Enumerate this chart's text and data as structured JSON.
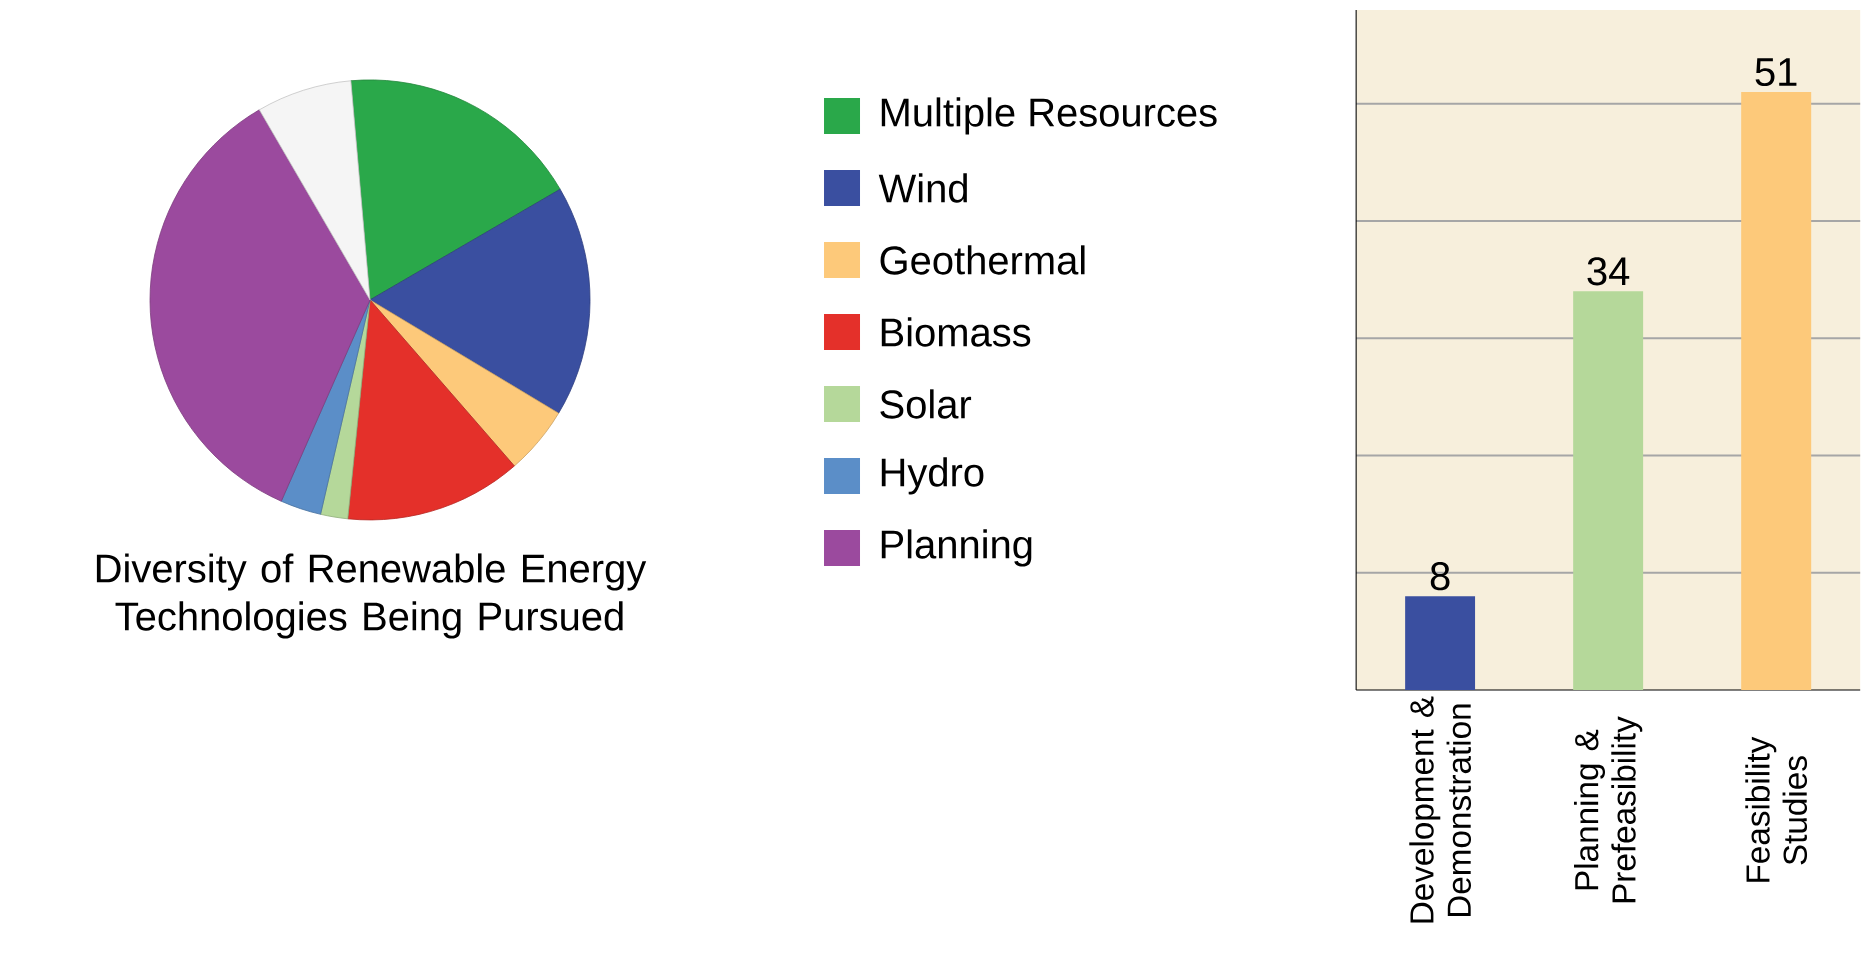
{
  "chart_data": [
    {
      "type": "pie",
      "title": "Diversity of Renewable Energy Technologies Being Pursued",
      "legend": "right",
      "categories": [
        "Multiple Resources",
        "Wind",
        "Geothermal",
        "Biomass",
        "Solar",
        "Hydro",
        "Planning",
        null
      ],
      "values": [
        18,
        17,
        5,
        13,
        2,
        3,
        35,
        7
      ],
      "colors": [
        "#2aa84a",
        "#3a4fa0",
        "#fdc97a",
        "#e4302a",
        "#b5d89a",
        "#5b8ec8",
        "#9b4a9e",
        "#f5f5f5"
      ]
    },
    {
      "type": "bar",
      "categories": [
        "Development & Demonstration",
        "Planning & Prefeasibility",
        "Feasibility Studies"
      ],
      "values": [
        8,
        34,
        51
      ],
      "colors": [
        "#3a4fa0",
        "#b5d89a",
        "#fdc97a"
      ],
      "data_labels": true,
      "grid": "y",
      "tick_labels": "x",
      "ylim": [
        0,
        58
      ],
      "yticks": [
        {
          "value": 10,
          "label": null
        },
        {
          "value": 20,
          "label": null
        },
        {
          "value": 30,
          "label": null
        },
        {
          "value": 40,
          "label": null
        },
        {
          "value": 50,
          "label": null
        }
      ]
    }
  ]
}
